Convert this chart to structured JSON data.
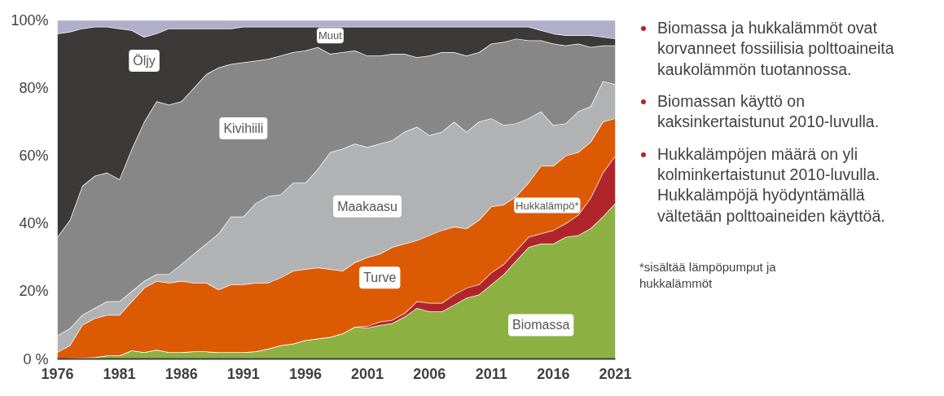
{
  "chart_data": {
    "type": "area",
    "stacked": true,
    "x": [
      1976,
      1977,
      1978,
      1979,
      1980,
      1981,
      1982,
      1983,
      1984,
      1985,
      1986,
      1987,
      1988,
      1989,
      1990,
      1991,
      1992,
      1993,
      1994,
      1995,
      1996,
      1997,
      1998,
      1999,
      2000,
      2001,
      2002,
      2003,
      2004,
      2005,
      2006,
      2007,
      2008,
      2009,
      2010,
      2011,
      2012,
      2013,
      2014,
      2015,
      2016,
      2017,
      2018,
      2019,
      2020,
      2021
    ],
    "series": [
      {
        "name": "Biomassa",
        "color": "#8db043",
        "values": [
          0,
          0.2,
          0.3,
          0.5,
          1,
          1,
          2.5,
          2,
          2.7,
          2,
          2,
          2.2,
          2.2,
          2,
          2,
          2,
          2.2,
          3,
          4,
          4.5,
          5.5,
          6,
          6.5,
          7.5,
          9.5,
          9.2,
          10,
          10.5,
          12.5,
          15,
          14,
          14,
          16,
          18,
          19,
          22,
          25,
          29,
          33,
          34,
          34,
          36,
          36.5,
          38.5,
          42,
          46
        ]
      },
      {
        "name": "Hukkalämpö*",
        "color": "#b0252c",
        "values": [
          0,
          0,
          0,
          0,
          0,
          0,
          0,
          0,
          0,
          0,
          0,
          0,
          0,
          0,
          0,
          0,
          0,
          0,
          0,
          0,
          0,
          0,
          0,
          0,
          0,
          0.5,
          1,
          1,
          1,
          2,
          2.5,
          2.5,
          3,
          3,
          3,
          3.5,
          3,
          3,
          3,
          3,
          4,
          4,
          6,
          9,
          13,
          14
        ]
      },
      {
        "name": "Turve",
        "color": "#dd5a05",
        "values": [
          2,
          3.8,
          9.7,
          11.5,
          12,
          12,
          14.5,
          19,
          20.3,
          20.5,
          21,
          20.3,
          20.3,
          18.5,
          20,
          20,
          20.3,
          19.5,
          20,
          21.5,
          21,
          21,
          20,
          18.5,
          19,
          20.3,
          20,
          21.5,
          20.5,
          18,
          20,
          21.5,
          20,
          17.5,
          19,
          19.5,
          17.5,
          16,
          16,
          20,
          19,
          20,
          18.5,
          16.5,
          15,
          11
        ]
      },
      {
        "name": "Maakaasu",
        "color": "#b1b2b3",
        "values": [
          5,
          5,
          3,
          3,
          4,
          4,
          3,
          2,
          2,
          2.5,
          5,
          8.5,
          11.5,
          16.5,
          20,
          20,
          23.5,
          25.5,
          24.5,
          26,
          25.5,
          29,
          34.5,
          36,
          35,
          32.5,
          32.5,
          31.5,
          33,
          33.5,
          29.5,
          29,
          31,
          28.5,
          29,
          26,
          23.5,
          21.5,
          19,
          16,
          12,
          9.5,
          12,
          10.5,
          12,
          10
        ]
      },
      {
        "name": "Kivihiili",
        "color": "#878787",
        "values": [
          29,
          32,
          38,
          39,
          38,
          36,
          42,
          47,
          51,
          50,
          48,
          49,
          50,
          49,
          45,
          45.5,
          42,
          40.5,
          41,
          38.5,
          39,
          36,
          29,
          28.5,
          27.5,
          27,
          26,
          25.5,
          23,
          20.5,
          23.5,
          23.5,
          20.5,
          22.5,
          20.5,
          22,
          24.5,
          25,
          23,
          21,
          24,
          23,
          20,
          17.5,
          10.5,
          11.5
        ]
      },
      {
        "name": "Öljy",
        "color": "#3b3a39",
        "values": [
          60,
          55.5,
          46.5,
          44,
          43,
          44.5,
          35,
          25,
          20,
          22.5,
          21.5,
          17.5,
          13.5,
          11.5,
          10.5,
          10.5,
          10,
          9.5,
          8.5,
          7.5,
          7,
          6,
          8,
          7.5,
          7,
          8.5,
          8.5,
          8,
          8,
          9,
          8.5,
          7.5,
          7.5,
          8.5,
          7.5,
          5,
          4.5,
          3.5,
          4,
          3,
          3,
          3,
          2.5,
          3.5,
          2.5,
          2
        ]
      },
      {
        "name": "Muut",
        "color": "#b0aec8",
        "values": [
          4,
          3.5,
          2.5,
          2,
          2,
          2.5,
          3,
          5,
          4,
          2.5,
          2.5,
          2.5,
          2.5,
          2.5,
          2.5,
          2,
          2,
          2,
          2,
          2,
          2,
          2,
          2,
          2,
          2,
          2,
          2,
          2,
          2,
          2,
          2,
          2,
          2,
          2,
          2,
          2,
          2,
          2,
          2,
          3,
          4,
          4.5,
          4.5,
          4.5,
          5,
          5.5
        ]
      }
    ],
    "xlim": [
      1976,
      2021
    ],
    "xticks": [
      1976,
      1981,
      1986,
      1991,
      1996,
      2001,
      2006,
      2011,
      2016,
      2021
    ],
    "ylim": [
      0,
      100
    ],
    "yticks": [
      {
        "value": 0,
        "label": "0 %"
      },
      {
        "value": 20,
        "label": "20%"
      },
      {
        "value": 40,
        "label": "40%"
      },
      {
        "value": 60,
        "label": "60%"
      },
      {
        "value": 80,
        "label": "80%"
      },
      {
        "value": 100,
        "label": "100%"
      }
    ],
    "legend": false,
    "annotations": [
      "Biomassa ja hukkalämmöt ovat korvanneet fossiilisia polttoaineita kaukolämmön tuotannossa.",
      "Biomassan käyttö on kaksinkertaistunut 2010-luvulla.",
      "Hukkalämpöjen määrä on yli kolminkertaistunut 2010-luvulla. Hukkalämpöjä hyödyntämällä vältetään polttoaineiden käyttöä.",
      "*sisältää lämpöpumput ja hukkalämmöt"
    ]
  }
}
